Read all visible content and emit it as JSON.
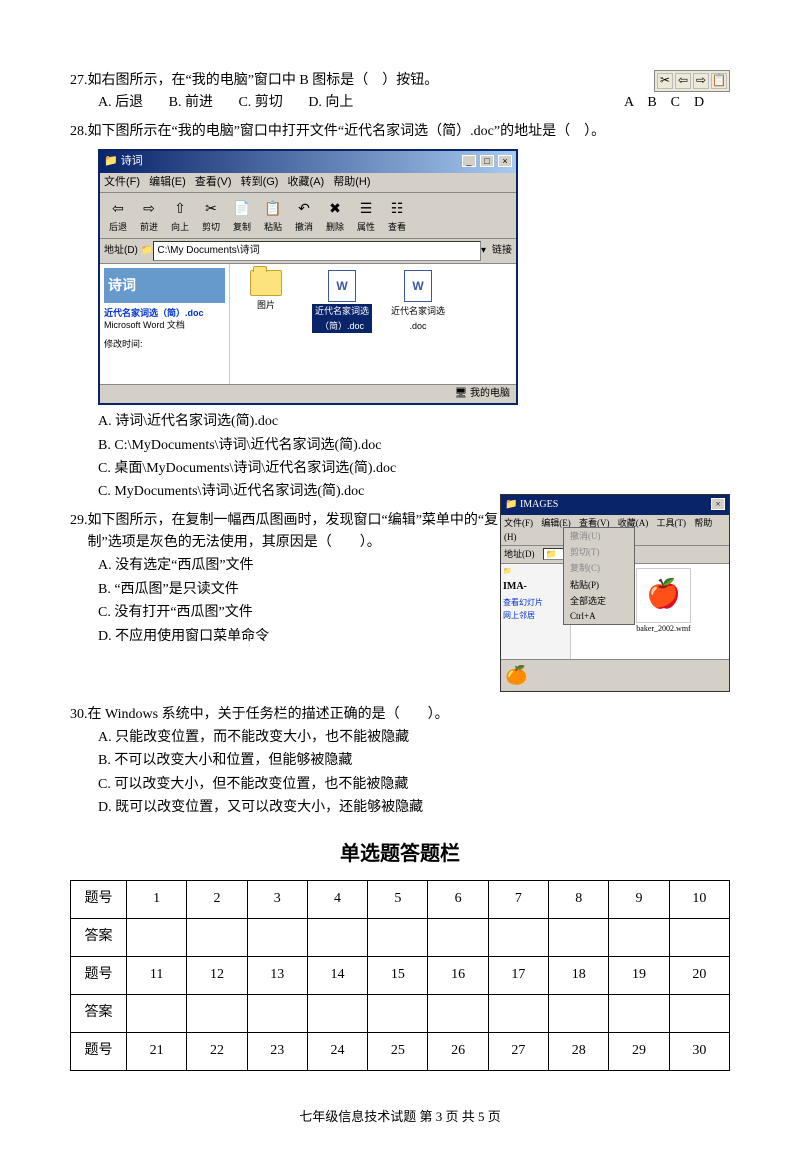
{
  "q27": {
    "num": "27.",
    "text": "如右图所示，在“我的电脑”窗口中 B 图标是（　）按钮。",
    "options": {
      "a": "A. 后退",
      "b": "B. 前进",
      "c": "C. 剪切",
      "d": "D. 向上"
    },
    "icons": [
      "✂",
      "⇦",
      "⇨",
      "📋"
    ],
    "letters": "A　B　C　D"
  },
  "q28": {
    "num": "28.",
    "text": "如下图所示在“我的电脑”窗口中打开文件“近代名家词选（简）.doc”的地址是（　）。",
    "options": {
      "a": "A. 诗词\\近代名家词选(简).doc",
      "b": "B. C:\\MyDocuments\\诗词\\近代名家词选(简).doc",
      "c": "C. 桌面\\MyDocuments\\诗词\\近代名家词选(简).doc",
      "d": "C. MyDocuments\\诗词\\近代名家词选(简).doc"
    },
    "window": {
      "title": "诗词",
      "menus": [
        "文件(F)",
        "编辑(E)",
        "查看(V)",
        "转到(G)",
        "收藏(A)",
        "帮助(H)"
      ],
      "toolbar": [
        {
          "icon": "⇦",
          "label": "后退"
        },
        {
          "icon": "⇨",
          "label": "前进"
        },
        {
          "icon": "⇧",
          "label": "向上"
        },
        {
          "icon": "✂",
          "label": "剪切"
        },
        {
          "icon": "📄",
          "label": "复制"
        },
        {
          "icon": "📋",
          "label": "粘贴"
        },
        {
          "icon": "↶",
          "label": "撤消"
        },
        {
          "icon": "✖",
          "label": "删除"
        },
        {
          "icon": "☰",
          "label": "属性"
        },
        {
          "icon": "☷",
          "label": "查看"
        }
      ],
      "addr_label": "地址(D)",
      "addr_value": "C:\\My Documents\\诗词",
      "go_btn": "链接",
      "sidebar_title": "诗词",
      "sidebar_info1": "近代名家词选（简）.doc",
      "sidebar_info2": "Microsoft Word 文档",
      "sidebar_info3": "修改时间:",
      "files": [
        {
          "type": "folder",
          "label": "图片"
        },
        {
          "type": "doc",
          "label": "近代名家词选（简）.doc",
          "selected": true
        },
        {
          "type": "doc",
          "label": "近代名家词选 .doc"
        }
      ],
      "status": "🖥 我的电脑"
    }
  },
  "q29": {
    "num": "29.",
    "text1": "如下图所示，在复制一幅西瓜图画时，发现窗口“编辑”菜单中的“复制”选项是灰色的无法使用，其原因是（　　）。",
    "options": {
      "a": "A. 没有选定“西瓜图”文件",
      "b": "B. “西瓜图”是只读文件",
      "c": "C. 没有打开“西瓜图”文件",
      "d": "D. 不应用使用窗口菜单命令"
    },
    "window": {
      "title": "IMAGES",
      "menus": [
        "文件(F)",
        "编辑(E)",
        "查看(V)",
        "收藏(A)",
        "工具(T)",
        "帮助(H)"
      ],
      "addr_label": "地址(D)",
      "side_title": "IMA-",
      "side_links": [
        "查看幻灯片",
        "网上邻居"
      ],
      "menu_items": [
        {
          "t": "撤消(U)",
          "g": true
        },
        {
          "t": "剪切(T)",
          "g": true
        },
        {
          "t": "复制(C)",
          "g": true
        },
        {
          "t": "粘贴(P)",
          "g": false
        },
        {
          "t": "全部选定",
          "g": false
        }
      ],
      "menu_shortcut": "Ctrl+A",
      "thumbs": [
        {
          "emoji": "🍉",
          "label": ""
        },
        {
          "emoji": "🍎",
          "label": "baker_2002.wmf"
        }
      ],
      "small_thumb": "🍊"
    }
  },
  "q30": {
    "num": "30.",
    "text": "在 Windows 系统中，关于任务栏的描述正确的是（　　）。",
    "options": {
      "a": "A. 只能改变位置，而不能改变大小，也不能被隐藏",
      "b": "B. 不可以改变大小和位置，但能够被隐藏",
      "c": "C. 可以改变大小，但不能改变位置，也不能被隐藏",
      "d": "D. 既可以改变位置，又可以改变大小，还能够被隐藏"
    }
  },
  "answer_section": {
    "title": "单选题答题栏",
    "row_label_q": "题号",
    "row_label_a": "答案",
    "rows": [
      [
        "1",
        "2",
        "3",
        "4",
        "5",
        "6",
        "7",
        "8",
        "9",
        "10"
      ],
      [
        "11",
        "12",
        "13",
        "14",
        "15",
        "16",
        "17",
        "18",
        "19",
        "20"
      ],
      [
        "21",
        "22",
        "23",
        "24",
        "25",
        "26",
        "27",
        "28",
        "29",
        "30"
      ]
    ]
  },
  "footer": "七年级信息技术试题 第 3 页  共 5 页"
}
